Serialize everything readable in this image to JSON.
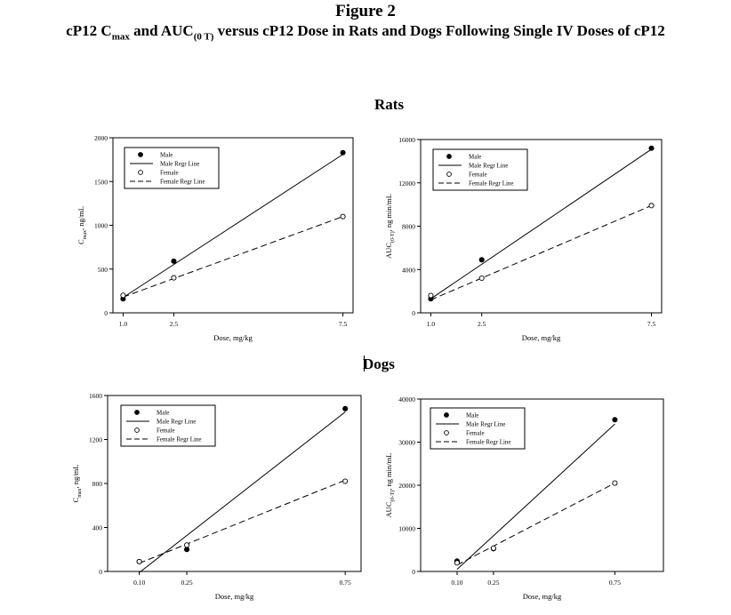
{
  "figure": {
    "number": "Figure 2",
    "title_prefix": "cP12 C",
    "title_sub_max": "max",
    "title_and": " and AUC",
    "title_sub_auc": "(0 T)",
    "title_rest": " versus cP12 Dose in Rats and Dogs Following Single IV Doses of cP12"
  },
  "sections": {
    "rats": "Rats",
    "dogs": "Dogs"
  },
  "legend_labels": [
    "Male",
    "Male Regr Line",
    "Female",
    "Female Regr Line"
  ],
  "chart_data": [
    {
      "type": "scatter",
      "group": "Rats",
      "xlabel": "Dose, mg/kg",
      "ylabel_main": "C",
      "ylabel_sub": "max",
      "ylabel_tail": ", ng/mL",
      "x_ticks": [
        1.0,
        2.5,
        7.5
      ],
      "x_tick_labels": [
        "1.0",
        "2.5",
        "7.5"
      ],
      "y_ticks": [
        0,
        500,
        1000,
        1500,
        2000
      ],
      "y_tick_labels": [
        "0",
        "500",
        "1000",
        "1500",
        "2000"
      ],
      "xlim": [
        0.7,
        7.8
      ],
      "ylim": [
        0,
        2000
      ],
      "legend_position": "top-left",
      "series": [
        {
          "name": "Male",
          "marker": "filled-circle",
          "x": [
            1.0,
            2.5,
            7.5
          ],
          "y": [
            160,
            590,
            1830
          ]
        },
        {
          "name": "Female",
          "marker": "open-circle",
          "x": [
            1.0,
            2.5,
            7.5
          ],
          "y": [
            200,
            400,
            1100
          ]
        }
      ],
      "regression": [
        {
          "name": "Male Regr Line",
          "style": "solid",
          "x": [
            1.0,
            7.5
          ],
          "y": [
            175,
            1810
          ]
        },
        {
          "name": "Female Regr Line",
          "style": "dashed",
          "x": [
            1.0,
            7.5
          ],
          "y": [
            180,
            1100
          ]
        }
      ]
    },
    {
      "type": "scatter",
      "group": "Rats",
      "xlabel": "Dose, mg/kg",
      "ylabel_main": "AUC",
      "ylabel_sub": "(0-T)",
      "ylabel_tail": ", ng min/mL",
      "x_ticks": [
        1.0,
        2.5,
        7.5
      ],
      "x_tick_labels": [
        "1.0",
        "2.5",
        "7.5"
      ],
      "y_ticks": [
        0,
        4000,
        8000,
        12000,
        16000
      ],
      "y_tick_labels": [
        "0",
        "4000",
        "8000",
        "12000",
        "16000"
      ],
      "xlim": [
        0.7,
        7.8
      ],
      "ylim": [
        0,
        16000
      ],
      "legend_position": "top-left",
      "series": [
        {
          "name": "Male",
          "marker": "filled-circle",
          "x": [
            1.0,
            2.5,
            7.5
          ],
          "y": [
            1300,
            4900,
            15200
          ]
        },
        {
          "name": "Female",
          "marker": "open-circle",
          "x": [
            1.0,
            2.5,
            7.5
          ],
          "y": [
            1600,
            3200,
            9900
          ]
        }
      ],
      "regression": [
        {
          "name": "Male Regr Line",
          "style": "solid",
          "x": [
            1.0,
            7.5
          ],
          "y": [
            1300,
            15100
          ]
        },
        {
          "name": "Female Regr Line",
          "style": "dashed",
          "x": [
            1.0,
            7.5
          ],
          "y": [
            1200,
            9900
          ]
        }
      ]
    },
    {
      "type": "scatter",
      "group": "Dogs",
      "xlabel": "Dose, mg/kg",
      "ylabel_main": "C",
      "ylabel_sub": "max",
      "ylabel_tail": ", ng/mL",
      "x_ticks": [
        0.1,
        0.25,
        0.75
      ],
      "x_tick_labels": [
        "0.10",
        "0.25",
        "0.75"
      ],
      "y_ticks": [
        0,
        400,
        800,
        1200,
        1600
      ],
      "y_tick_labels": [
        "0",
        "400",
        "800",
        "1200",
        "1600"
      ],
      "xlim": [
        0.0,
        0.8
      ],
      "ylim": [
        0,
        1600
      ],
      "legend_position": "top-left",
      "series": [
        {
          "name": "Male",
          "marker": "filled-circle",
          "x": [
            0.1,
            0.25,
            0.75
          ],
          "y": [
            90,
            200,
            1480
          ]
        },
        {
          "name": "Female",
          "marker": "open-circle",
          "x": [
            0.1,
            0.25,
            0.75
          ],
          "y": [
            90,
            240,
            820
          ]
        }
      ],
      "regression": [
        {
          "name": "Male Regr Line",
          "style": "solid",
          "x": [
            0.1,
            0.75
          ],
          "y": [
            -10,
            1450
          ]
        },
        {
          "name": "Female Regr Line",
          "style": "dashed",
          "x": [
            0.1,
            0.75
          ],
          "y": [
            75,
            830
          ]
        }
      ]
    },
    {
      "type": "scatter",
      "group": "Dogs",
      "xlabel": "Dose, mg/kg",
      "ylabel_main": "AUC",
      "ylabel_sub": "(0-T)",
      "ylabel_tail": ", ng min/mL",
      "x_ticks": [
        0.1,
        0.25,
        0.75
      ],
      "x_tick_labels": [
        "0.10",
        "0.25",
        "0.75"
      ],
      "y_ticks": [
        0,
        10000,
        20000,
        30000,
        40000
      ],
      "y_tick_labels": [
        "0",
        "10000",
        "20000",
        "30000",
        "40000"
      ],
      "xlim": [
        -0.05,
        0.95
      ],
      "ylim": [
        0,
        40000
      ],
      "legend_position": "top-left",
      "series": [
        {
          "name": "Male",
          "marker": "filled-circle",
          "x": [
            0.1,
            0.25,
            0.75
          ],
          "y": [
            2400,
            5300,
            35200
          ]
        },
        {
          "name": "Female",
          "marker": "open-circle",
          "x": [
            0.1,
            0.25,
            0.75
          ],
          "y": [
            2000,
            5400,
            20500
          ]
        }
      ],
      "regression": [
        {
          "name": "Male Regr Line",
          "style": "solid",
          "x": [
            0.1,
            0.75
          ],
          "y": [
            500,
            34200
          ]
        },
        {
          "name": "Female Regr Line",
          "style": "dashed",
          "x": [
            0.1,
            0.75
          ],
          "y": [
            1500,
            20500
          ]
        }
      ]
    }
  ]
}
